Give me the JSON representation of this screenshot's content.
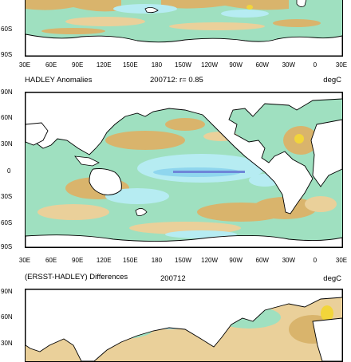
{
  "colors": {
    "tan": "#d9b46c",
    "light_tan": "#ead09a",
    "green": "#9fe0c0",
    "light_cyan": "#b6ecf2",
    "cyan": "#8fd6ee",
    "blue": "#6f86d8",
    "yellow": "#f2d53a",
    "land": "#ffffff",
    "coast": "#000000"
  },
  "lon_ticks": [
    "30E",
    "60E",
    "90E",
    "120E",
    "150E",
    "180",
    "150W",
    "120W",
    "90W",
    "60W",
    "30W",
    "0",
    "30E"
  ],
  "panels": [
    {
      "id": "ersst",
      "lat_labels": [
        "60S",
        "90S"
      ],
      "title_left": "",
      "title_center": "",
      "title_right": ""
    },
    {
      "id": "hadley",
      "lat_labels": [
        "90N",
        "60N",
        "30N",
        "0",
        "30S",
        "60S",
        "90S"
      ],
      "title_left": "HADLEY Anomalies",
      "title_center": "200712: r= 0.85",
      "title_right": "degC"
    },
    {
      "id": "diff",
      "lat_labels": [
        "90N",
        "60N",
        "30N"
      ],
      "title_left": "(ERSST-HADLEY) Differences",
      "title_center": "200712",
      "title_right": "degC"
    }
  ]
}
